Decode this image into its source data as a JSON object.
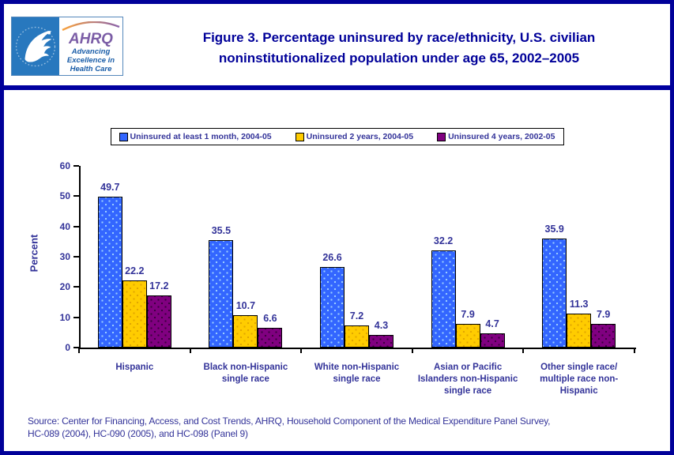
{
  "header": {
    "logo": {
      "ahrq_text": "AHRQ",
      "tagline_lines": [
        "Advancing",
        "Excellence in",
        "Health Care"
      ]
    },
    "title_line1": "Figure 3. Percentage uninsured by race/ethnicity, U.S. civilian",
    "title_line2": "noninstitutionalized population under age 65, 2002–2005"
  },
  "chart_data": {
    "type": "bar",
    "title": "Figure 3. Percentage uninsured by race/ethnicity, U.S. civilian noninstitutionalized population under age 65, 2002–2005",
    "ylabel": "Percent",
    "ylim": [
      0,
      60
    ],
    "yticks": [
      0,
      10,
      20,
      30,
      40,
      50,
      60
    ],
    "grid": false,
    "legend_position": "top-center",
    "categories": [
      "Hispanic",
      "Black non-Hispanic single race",
      "White non-Hispanic single race",
      "Asian or Pacific Islanders non-Hispanic single race",
      "Other single race/ multiple race non-Hispanic"
    ],
    "category_label_lines": [
      [
        "Hispanic"
      ],
      [
        "Black non-Hispanic",
        "single race"
      ],
      [
        "White non-Hispanic",
        "single race"
      ],
      [
        "Asian or Pacific",
        "Islanders non-Hispanic",
        "single race"
      ],
      [
        "Other single race/",
        "multiple race non-",
        "Hispanic"
      ]
    ],
    "series": [
      {
        "name": "Uninsured at least 1 month, 2004-05",
        "color": "#3366FF",
        "dot_color": "#99CCFF",
        "values": [
          49.7,
          35.5,
          26.6,
          32.2,
          35.9
        ]
      },
      {
        "name": "Uninsured 2 years, 2004-05",
        "color": "#FFCC00",
        "dot_color": "#E2A700",
        "values": [
          22.2,
          10.7,
          7.2,
          7.9,
          11.3
        ]
      },
      {
        "name": "Uninsured 4 years, 2002-05",
        "color": "#800080",
        "dot_color": "#3D0040",
        "values": [
          17.2,
          6.6,
          4.3,
          4.7,
          7.9
        ]
      }
    ]
  },
  "footer": {
    "source_line1": "Source: Center for Financing, Access, and Cost Trends, AHRQ, Household Component of the Medical Expenditure Panel Survey,",
    "source_line2": "HC-089 (2004), HC-090 (2005), and HC-098 (Panel 9)"
  }
}
